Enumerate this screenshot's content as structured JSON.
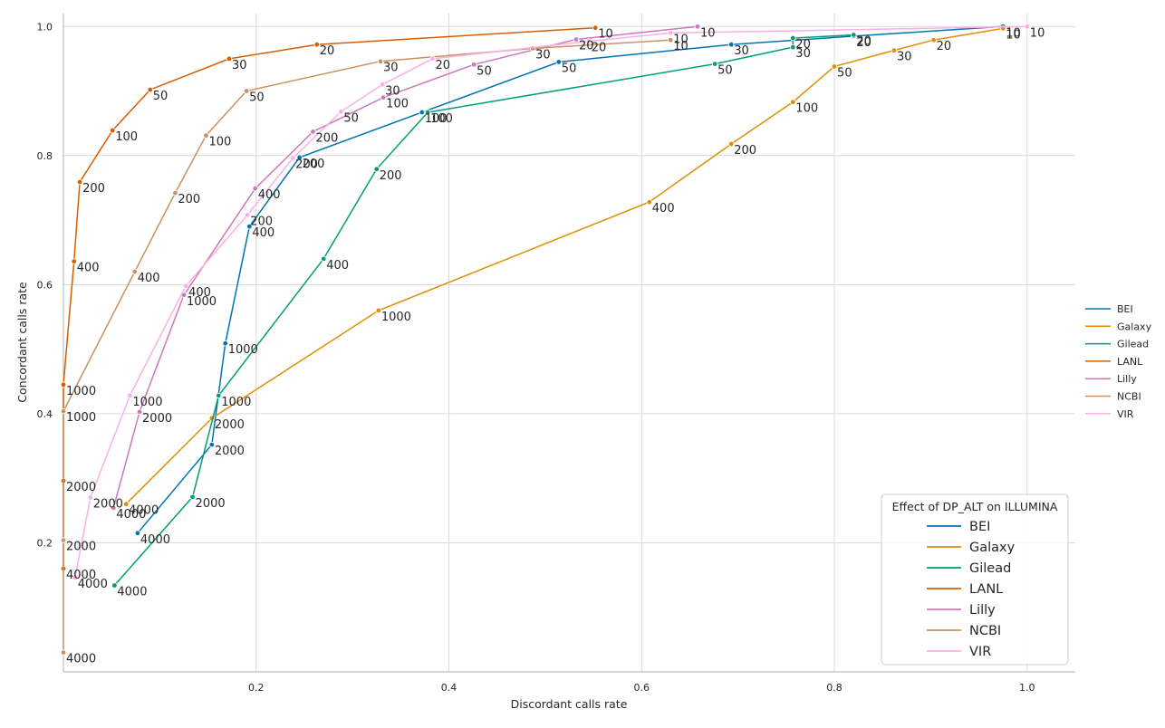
{
  "chart_data": {
    "type": "line",
    "title": "",
    "xlabel": "Discordant calls rate",
    "ylabel": "Concordant calls rate",
    "xlim": [
      0.0,
      1.05
    ],
    "ylim": [
      0.0,
      1.02
    ],
    "x_ticks": [
      "0.2",
      "0.4",
      "0.6",
      "0.8",
      "1.0"
    ],
    "y_ticks": [
      "0.2",
      "0.4",
      "0.6",
      "0.8",
      "1.0"
    ],
    "x_tick_values": [
      0.2,
      0.4,
      0.6,
      0.8,
      1.0
    ],
    "y_tick_values": [
      0.2,
      0.4,
      0.6,
      0.8,
      1.0
    ],
    "grid": true,
    "legend_position": "center-right",
    "legend_title": "Effect of DP_ALT on ILLUMINA",
    "legend_position_inner": "lower-right",
    "series": [
      {
        "name": "BEI",
        "color": "#0173b2",
        "points": [
          {
            "x": 0.975,
            "y": 1.0,
            "label": "10"
          },
          {
            "x": 0.82,
            "y": 0.985,
            "label": "20"
          },
          {
            "x": 0.693,
            "y": 0.972,
            "label": "30"
          },
          {
            "x": 0.514,
            "y": 0.945,
            "label": "50"
          },
          {
            "x": 0.372,
            "y": 0.867,
            "label": "100"
          },
          {
            "x": 0.245,
            "y": 0.797,
            "label": "200"
          },
          {
            "x": 0.193,
            "y": 0.69,
            "label": "400"
          },
          {
            "x": 0.168,
            "y": 0.509,
            "label": "1000"
          },
          {
            "x": 0.154,
            "y": 0.352,
            "label": "2000"
          },
          {
            "x": 0.077,
            "y": 0.215,
            "label": "4000"
          }
        ]
      },
      {
        "name": "Galaxy",
        "color": "#de8f05",
        "points": [
          {
            "x": 0.975,
            "y": 0.997,
            "label": "10"
          },
          {
            "x": 0.903,
            "y": 0.979,
            "label": "20"
          },
          {
            "x": 0.862,
            "y": 0.963,
            "label": "30"
          },
          {
            "x": 0.8,
            "y": 0.938,
            "label": "50"
          },
          {
            "x": 0.757,
            "y": 0.883,
            "label": "100"
          },
          {
            "x": 0.693,
            "y": 0.818,
            "label": "200"
          },
          {
            "x": 0.608,
            "y": 0.728,
            "label": "400"
          },
          {
            "x": 0.327,
            "y": 0.56,
            "label": "1000"
          },
          {
            "x": 0.154,
            "y": 0.393,
            "label": "2000"
          },
          {
            "x": 0.065,
            "y": 0.26,
            "label": "4000"
          }
        ]
      },
      {
        "name": "Gilead",
        "color": "#029e73",
        "points": [
          {
            "x": 0.82,
            "y": 0.987,
            "label": "20"
          },
          {
            "x": 0.757,
            "y": 0.982,
            "label": "20"
          },
          {
            "x": 0.757,
            "y": 0.968,
            "label": "30"
          },
          {
            "x": 0.676,
            "y": 0.942,
            "label": "50"
          },
          {
            "x": 0.378,
            "y": 0.867,
            "label": "100"
          },
          {
            "x": 0.325,
            "y": 0.779,
            "label": "200"
          },
          {
            "x": 0.27,
            "y": 0.64,
            "label": "400"
          },
          {
            "x": 0.161,
            "y": 0.428,
            "label": "1000"
          },
          {
            "x": 0.134,
            "y": 0.271,
            "label": "2000"
          },
          {
            "x": 0.053,
            "y": 0.134,
            "label": "4000"
          }
        ]
      },
      {
        "name": "LANL",
        "color": "#d55e00",
        "points": [
          {
            "x": 0.552,
            "y": 0.998,
            "label": "10"
          },
          {
            "x": 0.263,
            "y": 0.972,
            "label": "20"
          },
          {
            "x": 0.172,
            "y": 0.95,
            "label": "30"
          },
          {
            "x": 0.09,
            "y": 0.902,
            "label": "50"
          },
          {
            "x": 0.051,
            "y": 0.839,
            "label": "100"
          },
          {
            "x": 0.017,
            "y": 0.759,
            "label": "200"
          },
          {
            "x": 0.011,
            "y": 0.636,
            "label": "400"
          },
          {
            "x": 0.0,
            "y": 0.445,
            "label": "1000"
          },
          {
            "x": 0.0,
            "y": 0.296,
            "label": "2000"
          },
          {
            "x": 0.0,
            "y": 0.16,
            "label": "4000"
          }
        ]
      },
      {
        "name": "Lilly",
        "color": "#cc78bc",
        "points": [
          {
            "x": 0.658,
            "y": 1.0,
            "label": "10"
          },
          {
            "x": 0.532,
            "y": 0.98,
            "label": "20"
          },
          {
            "x": 0.426,
            "y": 0.941,
            "label": "50"
          },
          {
            "x": 0.332,
            "y": 0.89,
            "label": "100"
          },
          {
            "x": 0.259,
            "y": 0.837,
            "label": "200"
          },
          {
            "x": 0.199,
            "y": 0.749,
            "label": "400"
          },
          {
            "x": 0.125,
            "y": 0.584,
            "label": "1000"
          },
          {
            "x": 0.079,
            "y": 0.403,
            "label": "2000"
          },
          {
            "x": 0.052,
            "y": 0.254,
            "label": "4000"
          }
        ]
      },
      {
        "name": "NCBI",
        "color": "#ca9161",
        "points": [
          {
            "x": 0.63,
            "y": 0.979,
            "label": "10"
          },
          {
            "x": 0.487,
            "y": 0.966,
            "label": "30"
          },
          {
            "x": 0.329,
            "y": 0.946,
            "label": "30"
          },
          {
            "x": 0.19,
            "y": 0.9,
            "label": "50"
          },
          {
            "x": 0.148,
            "y": 0.831,
            "label": "100"
          },
          {
            "x": 0.116,
            "y": 0.742,
            "label": "200"
          },
          {
            "x": 0.074,
            "y": 0.62,
            "label": "400"
          },
          {
            "x": 0.0,
            "y": 0.404,
            "label": "1000"
          },
          {
            "x": 0.0,
            "y": 0.204,
            "label": "2000"
          },
          {
            "x": 0.0,
            "y": 0.03,
            "label": "4000"
          }
        ]
      },
      {
        "name": "VIR",
        "color": "#fbafe4",
        "points": [
          {
            "x": 1.0,
            "y": 1.0,
            "label": "10"
          },
          {
            "x": 0.63,
            "y": 0.99,
            "label": "10"
          },
          {
            "x": 0.545,
            "y": 0.977,
            "label": "20"
          },
          {
            "x": 0.383,
            "y": 0.95,
            "label": "20"
          },
          {
            "x": 0.331,
            "y": 0.91,
            "label": "30"
          },
          {
            "x": 0.288,
            "y": 0.868,
            "label": "50"
          },
          {
            "x": 0.238,
            "y": 0.796,
            "label": "200"
          },
          {
            "x": 0.191,
            "y": 0.708,
            "label": "200"
          },
          {
            "x": 0.127,
            "y": 0.598,
            "label": "400"
          },
          {
            "x": 0.069,
            "y": 0.428,
            "label": "1000"
          },
          {
            "x": 0.028,
            "y": 0.27,
            "label": "2000"
          },
          {
            "x": 0.012,
            "y": 0.146,
            "label": "4000"
          }
        ]
      }
    ]
  }
}
